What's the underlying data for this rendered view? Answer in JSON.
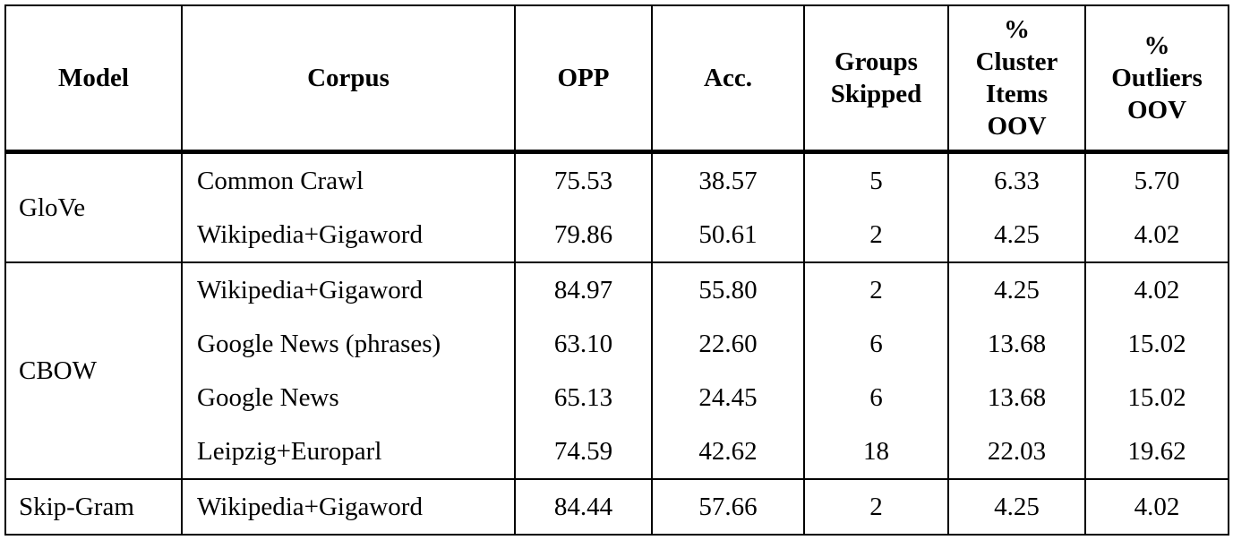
{
  "table": {
    "columns": [
      {
        "key": "model",
        "label": "Model"
      },
      {
        "key": "corpus",
        "label": "Corpus"
      },
      {
        "key": "opp",
        "label": "OPP"
      },
      {
        "key": "acc",
        "label": "Acc."
      },
      {
        "key": "groups",
        "label": "Groups\nSkipped"
      },
      {
        "key": "cluster",
        "label": "%\nCluster\nItems\nOOV"
      },
      {
        "key": "outliers",
        "label": "%\nOutliers\nOOV"
      }
    ],
    "sections": [
      {
        "model": "GloVe",
        "rows": [
          {
            "corpus": "Common Crawl",
            "values": [
              "75.53",
              "38.57",
              "5",
              "6.33",
              "5.70"
            ]
          },
          {
            "corpus": "Wikipedia+Gigaword",
            "values": [
              "79.86",
              "50.61",
              "2",
              "4.25",
              "4.02"
            ]
          }
        ]
      },
      {
        "model": "CBOW",
        "rows": [
          {
            "corpus": "Wikipedia+Gigaword",
            "values": [
              "84.97",
              "55.80",
              "2",
              "4.25",
              "4.02"
            ]
          },
          {
            "corpus": "Google News (phrases)",
            "values": [
              "63.10",
              "22.60",
              "6",
              "13.68",
              "15.02"
            ]
          },
          {
            "corpus": "Google News",
            "values": [
              "65.13",
              "24.45",
              "6",
              "13.68",
              "15.02"
            ]
          },
          {
            "corpus": "Leipzig+Europarl",
            "values": [
              "74.59",
              "42.62",
              "18",
              "22.03",
              "19.62"
            ]
          }
        ]
      },
      {
        "model": "Skip-Gram",
        "rows": [
          {
            "corpus": "Wikipedia+Gigaword",
            "values": [
              "84.44",
              "57.66",
              "2",
              "4.25",
              "4.02"
            ]
          }
        ]
      }
    ]
  }
}
